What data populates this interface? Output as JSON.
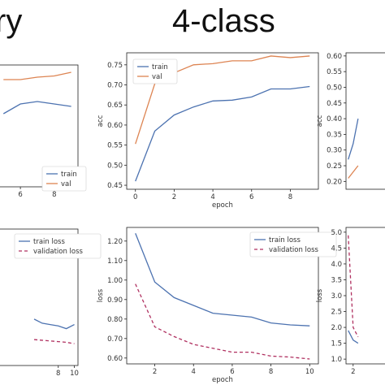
{
  "titles": {
    "left": "ry",
    "center": "4-class"
  },
  "chart_data": [
    {
      "type": "line",
      "id": "tr_left",
      "title": "",
      "x": [
        5,
        6,
        7,
        8,
        9
      ],
      "xlim": [
        4.7,
        9.4
      ],
      "ylim": [
        0,
        1
      ],
      "xticks": [
        6,
        8
      ],
      "yticks": [],
      "xlabel": "",
      "ylabel": "",
      "series": [
        {
          "name": "train",
          "color": "#4c72b0",
          "dash": "",
          "values": [
            0.6,
            0.68,
            0.7,
            0.68,
            0.66
          ]
        },
        {
          "name": "val",
          "color": "#dd8452",
          "dash": "",
          "values": [
            0.88,
            0.88,
            0.9,
            0.91,
            0.94
          ]
        }
      ],
      "legend": "bottom-right"
    },
    {
      "type": "line",
      "id": "tr_center",
      "title": "",
      "x": [
        0,
        1,
        2,
        3,
        4,
        5,
        6,
        7,
        8,
        9
      ],
      "xlim": [
        -0.45,
        9.45
      ],
      "ylim": [
        0.44,
        0.78
      ],
      "xticks": [
        0,
        2,
        4,
        6,
        8
      ],
      "yticks": [
        0.45,
        0.5,
        0.55,
        0.6,
        0.65,
        0.7,
        0.75
      ],
      "xlabel": "epoch",
      "ylabel": "acc",
      "series": [
        {
          "name": "train",
          "color": "#4c72b0",
          "dash": "",
          "values": [
            0.46,
            0.585,
            0.625,
            0.645,
            0.66,
            0.662,
            0.67,
            0.69,
            0.69,
            0.696
          ]
        },
        {
          "name": "val",
          "color": "#dd8452",
          "dash": "",
          "values": [
            0.553,
            0.703,
            0.73,
            0.75,
            0.753,
            0.76,
            0.76,
            0.772,
            0.768,
            0.772
          ]
        }
      ],
      "legend": "top-left"
    },
    {
      "type": "line",
      "id": "tr_right",
      "title": "",
      "x": [
        0,
        1,
        2
      ],
      "xlim": [
        -0.45,
        9.45
      ],
      "ylim": [
        0.175,
        0.61
      ],
      "xticks": [],
      "yticks": [
        0.2,
        0.25,
        0.3,
        0.35,
        0.4,
        0.45,
        0.5,
        0.55,
        0.6
      ],
      "xlabel": "",
      "ylabel": "acc",
      "series": [
        {
          "name": "",
          "color": "#4c72b0",
          "dash": "",
          "values": [
            0.27,
            0.32,
            0.4
          ]
        },
        {
          "name": "",
          "color": "#dd8452",
          "dash": "",
          "values": [
            0.21,
            0.23,
            0.25
          ]
        }
      ],
      "legend": "top-left"
    },
    {
      "type": "line",
      "id": "br_left",
      "title": "",
      "x": [
        5,
        6,
        7,
        8,
        9,
        10
      ],
      "xlim": [
        0.55,
        10.45
      ],
      "ylim": [
        0,
        1
      ],
      "xticks": [
        8,
        10
      ],
      "yticks": [],
      "xlabel": "",
      "ylabel": "",
      "series": [
        {
          "name": "train loss",
          "color": "#4c72b0",
          "dash": "",
          "values": [
            0.34,
            0.31,
            0.3,
            0.29,
            0.27,
            0.3
          ]
        },
        {
          "name": "validation loss",
          "color": "#b03060",
          "dash": "4,3",
          "values": [
            0.19,
            0.185,
            0.18,
            0.175,
            0.17,
            0.16
          ]
        }
      ],
      "legend": "top-left"
    },
    {
      "type": "line",
      "id": "br_center",
      "title": "",
      "x": [
        1,
        2,
        3,
        4,
        5,
        6,
        7,
        8,
        9,
        10
      ],
      "xlim": [
        0.55,
        10.45
      ],
      "ylim": [
        0.57,
        1.27
      ],
      "xticks": [
        2,
        4,
        6,
        8,
        10
      ],
      "yticks": [
        0.6,
        0.7,
        0.8,
        0.9,
        1.0,
        1.1,
        1.2
      ],
      "xlabel": "epoch",
      "ylabel": "loss",
      "series": [
        {
          "name": "train loss",
          "color": "#4c72b0",
          "dash": "",
          "values": [
            1.24,
            0.99,
            0.91,
            0.87,
            0.83,
            0.82,
            0.81,
            0.78,
            0.77,
            0.765
          ]
        },
        {
          "name": "validation loss",
          "color": "#b03060",
          "dash": "4,3",
          "values": [
            0.98,
            0.76,
            0.71,
            0.67,
            0.65,
            0.63,
            0.63,
            0.61,
            0.605,
            0.595
          ]
        }
      ],
      "legend": "top-right"
    },
    {
      "type": "line",
      "id": "br_right",
      "title": "",
      "x": [
        1,
        2,
        3
      ],
      "xlim": [
        0.55,
        10.45
      ],
      "ylim": [
        0.85,
        5.15
      ],
      "xticks": [
        2
      ],
      "yticks": [
        1.0,
        1.5,
        2.0,
        2.5,
        3.0,
        3.5,
        4.0,
        4.5,
        5.0
      ],
      "xlabel": "",
      "ylabel": "loss",
      "series": [
        {
          "name": "",
          "color": "#4c72b0",
          "dash": "",
          "values": [
            1.9,
            1.6,
            1.5
          ]
        },
        {
          "name": "",
          "color": "#b03060",
          "dash": "4,3",
          "values": [
            4.9,
            2.0,
            1.7
          ]
        }
      ],
      "legend": "top-left"
    }
  ]
}
